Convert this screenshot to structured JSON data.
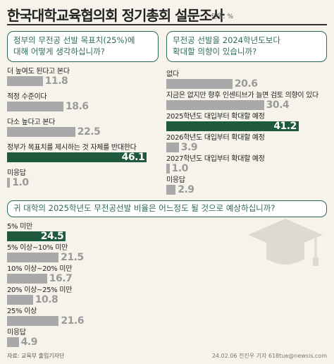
{
  "title": "한국대학교육협의회 정기총회 설문조사",
  "unit": "단위: %",
  "source": "자료: 교육부 출입기자단",
  "credit": "24.02.06 전진우 기자 618tue@newsis.com",
  "colors": {
    "accent": "#2f6b50",
    "highlight": "#1f5a3f",
    "bar": "#a9a9a9",
    "background": "#f5f3ea"
  },
  "chart_data": [
    {
      "type": "bar",
      "title": "정부의 무전공 선발 목표치(25%)에\n대해 어떻게 생각하십니까?",
      "categories": [
        "더 높여도 된다고 본다",
        "적정 수준이다",
        "다소 높다고 본다",
        "정부가 목표치를 제시하는 것 자체를 반대한다",
        "미응답"
      ],
      "values": [
        11.8,
        18.6,
        22.5,
        46.1,
        1.0
      ],
      "labels": [
        "11.8",
        "18.6",
        "22.5",
        "46.1",
        "1.0"
      ],
      "highlight_index": 3,
      "xlim": [
        0,
        50
      ]
    },
    {
      "type": "bar",
      "title": "무전공 선발을 2024학년도보다\n확대할 의향이 있습니까?",
      "categories": [
        "없다",
        "지금은 없지만 향후 인센티브가 늘면 검토 의향이 있다",
        "2025학년도 대입부터 확대할 예정",
        "2026학년도 대입부터 확대할 예정",
        "2027학년도 대입부터 확대할 예정",
        "미응답"
      ],
      "values": [
        20.6,
        30.4,
        41.2,
        3.9,
        1.0,
        2.9
      ],
      "labels": [
        "20.6",
        "30.4",
        "41.2",
        "3.9",
        "1.0",
        "2.9"
      ],
      "highlight_index": 2,
      "xlim": [
        0,
        50
      ]
    },
    {
      "type": "bar",
      "title": "귀 대학의 2025학년도 무전공선발 비율은 어느정도 될 것으로 예상하십니까?",
      "categories": [
        "5% 미만",
        "5% 이상~10% 미만",
        "10% 이상~20% 미만",
        "20% 이상~25% 미만",
        "25% 이상",
        "미응답"
      ],
      "values": [
        24.5,
        21.5,
        16.7,
        10.8,
        21.6,
        4.9
      ],
      "labels": [
        "24.5",
        "21.5",
        "16.7",
        "10.8",
        "21.6",
        "4.9"
      ],
      "highlight_index": 0,
      "xlim": [
        0,
        50
      ]
    }
  ]
}
